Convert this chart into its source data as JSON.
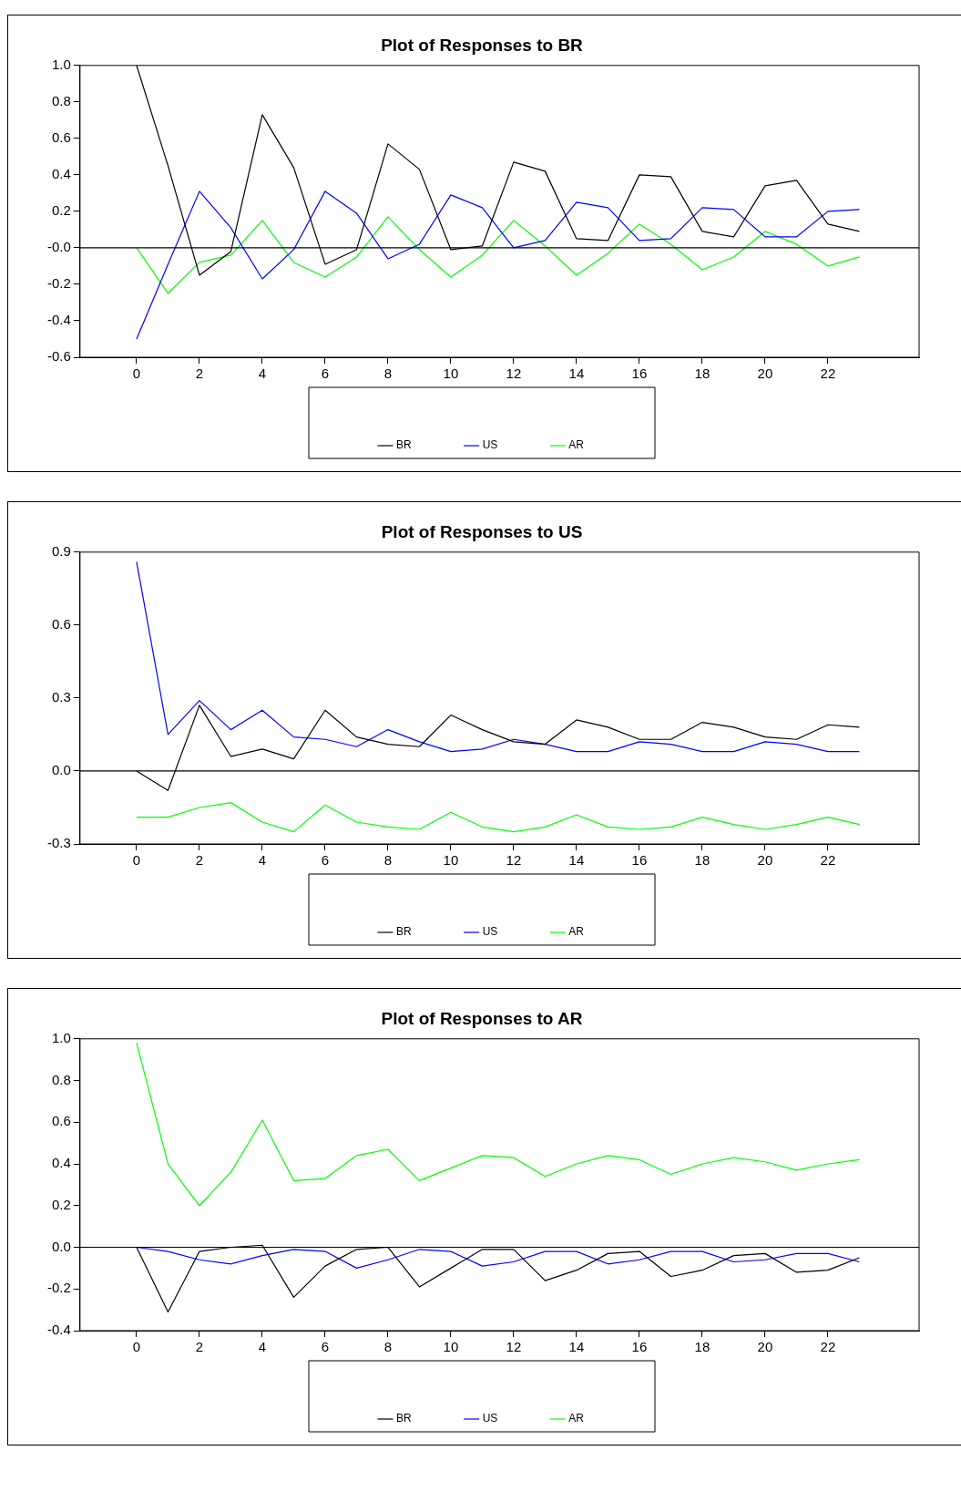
{
  "chart_data": [
    {
      "type": "line",
      "title": "Plot of Responses to BR",
      "x": [
        0,
        1,
        2,
        3,
        4,
        5,
        6,
        7,
        8,
        9,
        10,
        11,
        12,
        13,
        14,
        15,
        16,
        17,
        18,
        19,
        20,
        21,
        22,
        23
      ],
      "xlim": [
        -1.8,
        24.9
      ],
      "xticks": [
        0,
        2,
        4,
        6,
        8,
        10,
        12,
        14,
        16,
        18,
        20,
        22
      ],
      "ylim": [
        -0.6,
        1.0
      ],
      "yticks": [
        {
          "value": 1.0,
          "label": "1.0"
        },
        {
          "value": 0.8,
          "label": "0.8"
        },
        {
          "value": 0.6,
          "label": "0.6"
        },
        {
          "value": 0.4,
          "label": "0.4"
        },
        {
          "value": 0.2,
          "label": "0.2"
        },
        {
          "value": 0,
          "label": "-0.0"
        },
        {
          "value": -0.2,
          "label": "-0.2"
        },
        {
          "value": -0.4,
          "label": "-0.4"
        },
        {
          "value": -0.6,
          "label": "-0.6"
        }
      ],
      "grid": false,
      "legend": "bottom",
      "ref_lines": [
        {
          "axis": "y",
          "value": 0,
          "color": "#000000"
        }
      ],
      "series": [
        {
          "name": "BR",
          "color": "#000000",
          "values": [
            1.0,
            0.45,
            -0.15,
            -0.02,
            0.73,
            0.44,
            -0.09,
            -0.01,
            0.57,
            0.43,
            -0.01,
            0.01,
            0.47,
            0.42,
            0.05,
            0.04,
            0.4,
            0.39,
            0.09,
            0.06,
            0.34,
            0.37,
            0.13,
            0.09
          ]
        },
        {
          "name": "US",
          "color": "#0000ff",
          "values": [
            -0.5,
            -0.09,
            0.31,
            0.11,
            -0.17,
            -0.01,
            0.31,
            0.19,
            -0.06,
            0.02,
            0.29,
            0.22,
            0.0,
            0.04,
            0.25,
            0.22,
            0.04,
            0.05,
            0.22,
            0.21,
            0.06,
            0.06,
            0.2,
            0.21
          ]
        },
        {
          "name": "AR",
          "color": "#00ff00",
          "values": [
            0,
            -0.25,
            -0.08,
            -0.04,
            0.15,
            -0.08,
            -0.16,
            -0.05,
            0.17,
            -0.01,
            -0.16,
            -0.04,
            0.15,
            0.01,
            -0.15,
            -0.03,
            0.13,
            0.02,
            -0.12,
            -0.05,
            0.09,
            0.02,
            -0.1,
            -0.05
          ]
        }
      ]
    },
    {
      "type": "line",
      "title": "Plot of Responses to US",
      "x": [
        0,
        1,
        2,
        3,
        4,
        5,
        6,
        7,
        8,
        9,
        10,
        11,
        12,
        13,
        14,
        15,
        16,
        17,
        18,
        19,
        20,
        21,
        22,
        23
      ],
      "xlim": [
        -1.8,
        24.9
      ],
      "xticks": [
        0,
        2,
        4,
        6,
        8,
        10,
        12,
        14,
        16,
        18,
        20,
        22
      ],
      "ylim": [
        -0.3,
        0.9
      ],
      "yticks": [
        {
          "value": 0.9,
          "label": "0.9"
        },
        {
          "value": 0.6,
          "label": "0.6"
        },
        {
          "value": 0.3,
          "label": "0.3"
        },
        {
          "value": 0,
          "label": "0.0"
        },
        {
          "value": -0.3,
          "label": "-0.3"
        }
      ],
      "grid": false,
      "legend": "bottom",
      "ref_lines": [
        {
          "axis": "y",
          "value": 0,
          "color": "#000000"
        }
      ],
      "series": [
        {
          "name": "BR",
          "color": "#000000",
          "values": [
            0,
            -0.08,
            0.27,
            0.06,
            0.09,
            0.05,
            0.25,
            0.14,
            0.11,
            0.1,
            0.23,
            0.17,
            0.12,
            0.11,
            0.21,
            0.18,
            0.13,
            0.13,
            0.2,
            0.18,
            0.14,
            0.13,
            0.19,
            0.18
          ]
        },
        {
          "name": "US",
          "color": "#0000ff",
          "values": [
            0.86,
            0.15,
            0.29,
            0.17,
            0.25,
            0.14,
            0.13,
            0.1,
            0.17,
            0.12,
            0.08,
            0.09,
            0.13,
            0.11,
            0.08,
            0.08,
            0.12,
            0.11,
            0.08,
            0.08,
            0.12,
            0.11,
            0.08,
            0.08
          ]
        },
        {
          "name": "AR",
          "color": "#00ff00",
          "values": [
            -0.19,
            -0.19,
            -0.15,
            -0.13,
            -0.21,
            -0.25,
            -0.14,
            -0.21,
            -0.23,
            -0.24,
            -0.17,
            -0.23,
            -0.25,
            -0.23,
            -0.18,
            -0.23,
            -0.24,
            -0.23,
            -0.19,
            -0.22,
            -0.24,
            -0.22,
            -0.19,
            -0.22
          ]
        }
      ]
    },
    {
      "type": "line",
      "title": "Plot of Responses to AR",
      "x": [
        0,
        1,
        2,
        3,
        4,
        5,
        6,
        7,
        8,
        9,
        10,
        11,
        12,
        13,
        14,
        15,
        16,
        17,
        18,
        19,
        20,
        21,
        22,
        23
      ],
      "xlim": [
        -1.8,
        24.9
      ],
      "xticks": [
        0,
        2,
        4,
        6,
        8,
        10,
        12,
        14,
        16,
        18,
        20,
        22
      ],
      "ylim": [
        -0.4,
        1.0
      ],
      "yticks": [
        {
          "value": 1.0,
          "label": "1.0"
        },
        {
          "value": 0.8,
          "label": "0.8"
        },
        {
          "value": 0.6,
          "label": "0.6"
        },
        {
          "value": 0.4,
          "label": "0.4"
        },
        {
          "value": 0.2,
          "label": "0.2"
        },
        {
          "value": 0,
          "label": "0.0"
        },
        {
          "value": -0.2,
          "label": "-0.2"
        },
        {
          "value": -0.4,
          "label": "-0.4"
        }
      ],
      "grid": false,
      "legend": "bottom",
      "ref_lines": [
        {
          "axis": "y",
          "value": 0,
          "color": "#000000"
        }
      ],
      "series": [
        {
          "name": "BR",
          "color": "#000000",
          "values": [
            0,
            -0.31,
            -0.02,
            0.0,
            0.01,
            -0.24,
            -0.09,
            -0.01,
            0.0,
            -0.19,
            -0.1,
            -0.01,
            -0.01,
            -0.16,
            -0.11,
            -0.03,
            -0.02,
            -0.14,
            -0.11,
            -0.04,
            -0.03,
            -0.12,
            -0.11,
            -0.05
          ]
        },
        {
          "name": "US",
          "color": "#0000ff",
          "values": [
            0,
            -0.02,
            -0.06,
            -0.08,
            -0.04,
            -0.01,
            -0.02,
            -0.1,
            -0.06,
            -0.01,
            -0.02,
            -0.09,
            -0.07,
            -0.02,
            -0.02,
            -0.08,
            -0.06,
            -0.02,
            -0.02,
            -0.07,
            -0.06,
            -0.03,
            -0.03,
            -0.07
          ]
        },
        {
          "name": "AR",
          "color": "#00ff00",
          "values": [
            0.98,
            0.4,
            0.2,
            0.36,
            0.61,
            0.32,
            0.33,
            0.44,
            0.47,
            0.32,
            0.38,
            0.44,
            0.43,
            0.34,
            0.4,
            0.44,
            0.42,
            0.35,
            0.4,
            0.43,
            0.41,
            0.37,
            0.4,
            0.42
          ]
        }
      ]
    }
  ]
}
